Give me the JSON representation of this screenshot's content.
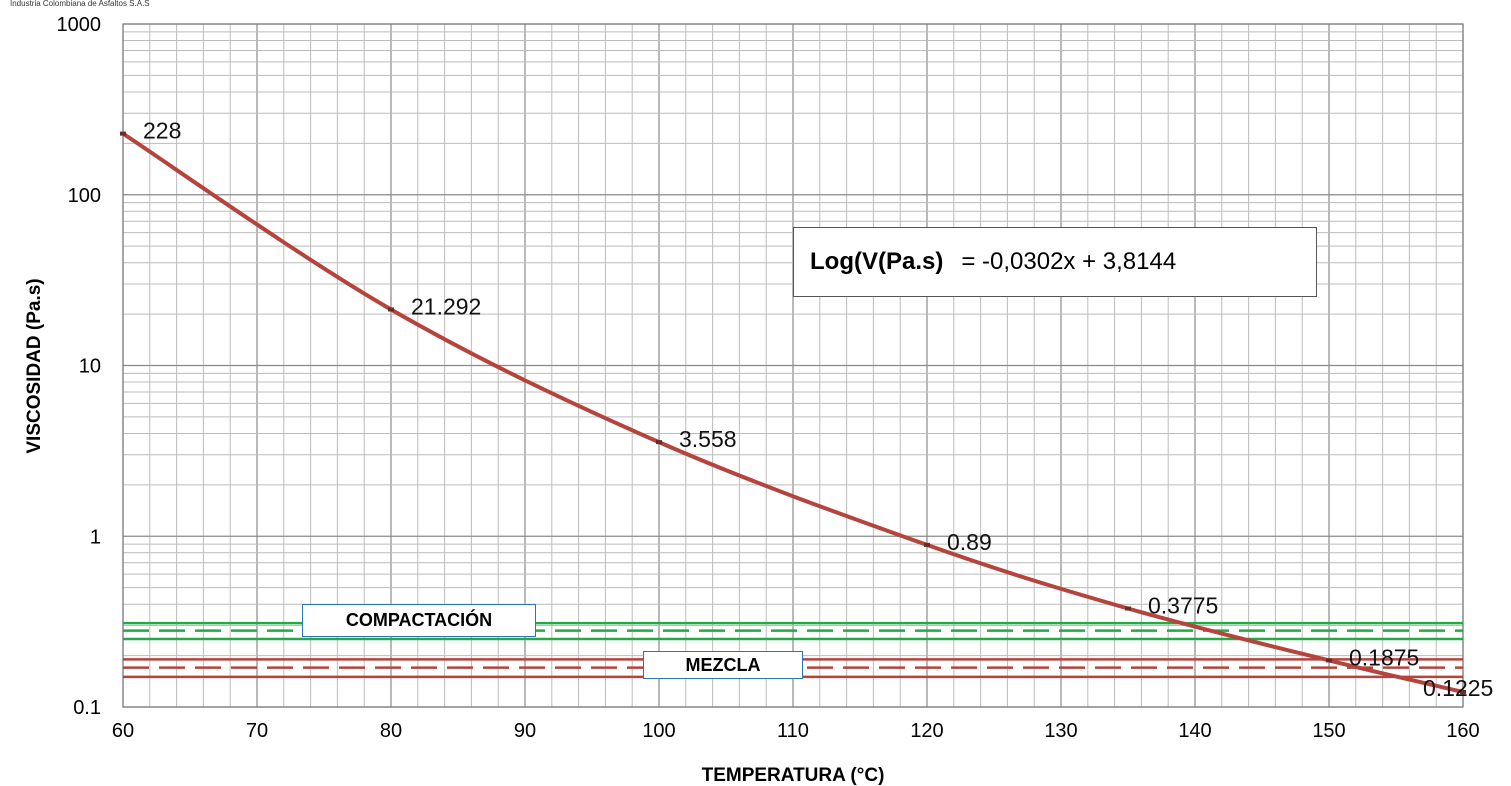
{
  "header": {
    "company": "Industria Colombiana de Asfaltos S.A.S"
  },
  "equation": {
    "lhs": "Log(V(Pa.s)",
    "rhs": "= -0,0302x + 3,8144"
  },
  "bands": {
    "compactacion": {
      "label": "COMPACTACIÓN",
      "color": "#22aa44",
      "lines": [
        0.25,
        0.28,
        0.31
      ],
      "dashed_index": 1
    },
    "mezcla": {
      "label": "MEZCLA",
      "color": "#b5443d",
      "lines": [
        0.15,
        0.17,
        0.19
      ],
      "dashed_index": 1
    }
  },
  "chart_data": {
    "type": "line",
    "xlabel": "TEMPERATURA (°C)",
    "ylabel": "VISCOSIDAD (Pa.s)",
    "xlim": [
      60,
      160
    ],
    "ylim": [
      0.1,
      1000
    ],
    "yscale": "log",
    "grid": true,
    "x_ticks": [
      "60",
      "70",
      "80",
      "90",
      "100",
      "110",
      "120",
      "130",
      "140",
      "150",
      "160"
    ],
    "y_ticks": [
      "0.1",
      "1",
      "10",
      "100",
      "1000"
    ],
    "series": [
      {
        "color": "#b5443d",
        "x": [
          60,
          80,
          100,
          120,
          135,
          150,
          160
        ],
        "y": [
          228,
          21.292,
          3.558,
          0.89,
          0.3775,
          0.1875,
          0.1225
        ],
        "labels": [
          "228",
          "21.292",
          "3.558",
          "0.89",
          "0.3775",
          "0.1875",
          "0.1225"
        ]
      }
    ]
  }
}
